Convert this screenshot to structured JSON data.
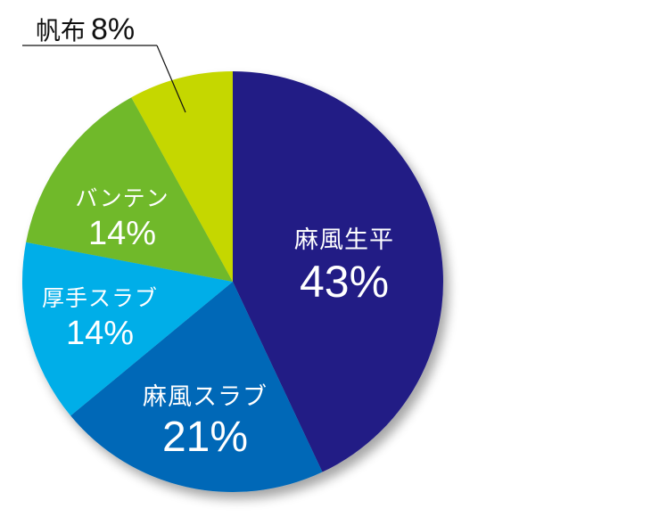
{
  "chart_data": {
    "type": "pie",
    "title": "",
    "start_angle_deg": 0,
    "direction": "clockwise",
    "slices": [
      {
        "label": "麻風生平",
        "value": 43,
        "display": "43%",
        "color": "#201c85"
      },
      {
        "label": "麻風スラブ",
        "value": 21,
        "display": "21%",
        "color": "#0068b7"
      },
      {
        "label": "厚手スラブ",
        "value": 14,
        "display": "14%",
        "color": "#00aee8"
      },
      {
        "label": "バンテン",
        "value": 14,
        "display": "14%",
        "color": "#6fb92c"
      },
      {
        "label": "帆布",
        "value": 8,
        "display": "8%",
        "color": "#c5d700"
      }
    ],
    "legend": "none",
    "label_position": "inside (帆布 outside with leader line)"
  },
  "labels": {
    "s0": {
      "name": "麻風生平",
      "pct": "43%"
    },
    "s1": {
      "name": "麻風スラブ",
      "pct": "21%"
    },
    "s2": {
      "name": "厚手スラブ",
      "pct": "14%"
    },
    "s3": {
      "name": "バンテン",
      "pct": "14%"
    },
    "s4": {
      "name": "帆布",
      "pct": "8%"
    }
  }
}
